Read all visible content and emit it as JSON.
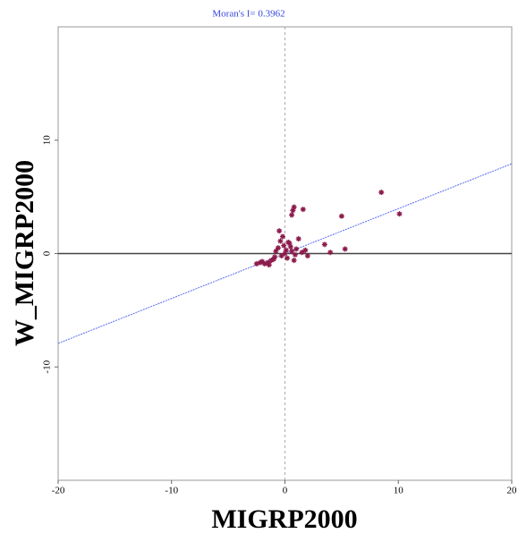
{
  "chart_data": {
    "type": "scatter",
    "title": "Moran's I= 0.3962",
    "x_label": "MIGRP2000",
    "y_label": "W_MIGRP2000",
    "xlim": [
      -20,
      20
    ],
    "ylim": [
      -20,
      20
    ],
    "xticks": [
      -20,
      -10,
      0,
      10,
      20
    ],
    "yticks": [
      -10,
      0,
      10
    ],
    "fit_slope": 0.3962,
    "fit_color": "#5a6cf0",
    "point_color": "#8b1a4a",
    "series": [
      {
        "name": "MIGRP2000",
        "color": "#8b1a4a",
        "x": [
          8.5,
          10.1,
          5.0,
          0.7,
          0.8,
          1.6,
          0.6,
          5.3,
          4.0,
          3.5,
          -0.5,
          1.2,
          -0.2,
          0.3,
          -1.0,
          -1.5,
          -2.0,
          -2.5,
          -0.8,
          0.5,
          1.0,
          -0.3,
          0.1,
          -1.2,
          0.9,
          1.5,
          -0.6,
          0.2,
          -1.8,
          0.4,
          -0.9,
          0.0,
          2.0,
          -0.1,
          0.6,
          -1.4,
          -0.4,
          0.8,
          -2.2,
          1.8
        ],
        "values": [
          5.4,
          3.5,
          3.3,
          3.8,
          4.1,
          3.9,
          3.4,
          0.4,
          0.1,
          0.8,
          2.0,
          1.3,
          1.5,
          1.0,
          -0.5,
          -0.8,
          -0.7,
          -0.9,
          0.2,
          0.6,
          0.4,
          -0.2,
          0.3,
          -0.6,
          -0.1,
          0.1,
          0.5,
          -0.4,
          -0.9,
          0.9,
          -0.3,
          0.0,
          -0.2,
          0.7,
          0.2,
          -1.0,
          1.1,
          -0.6,
          -0.8,
          0.3
        ]
      }
    ]
  }
}
